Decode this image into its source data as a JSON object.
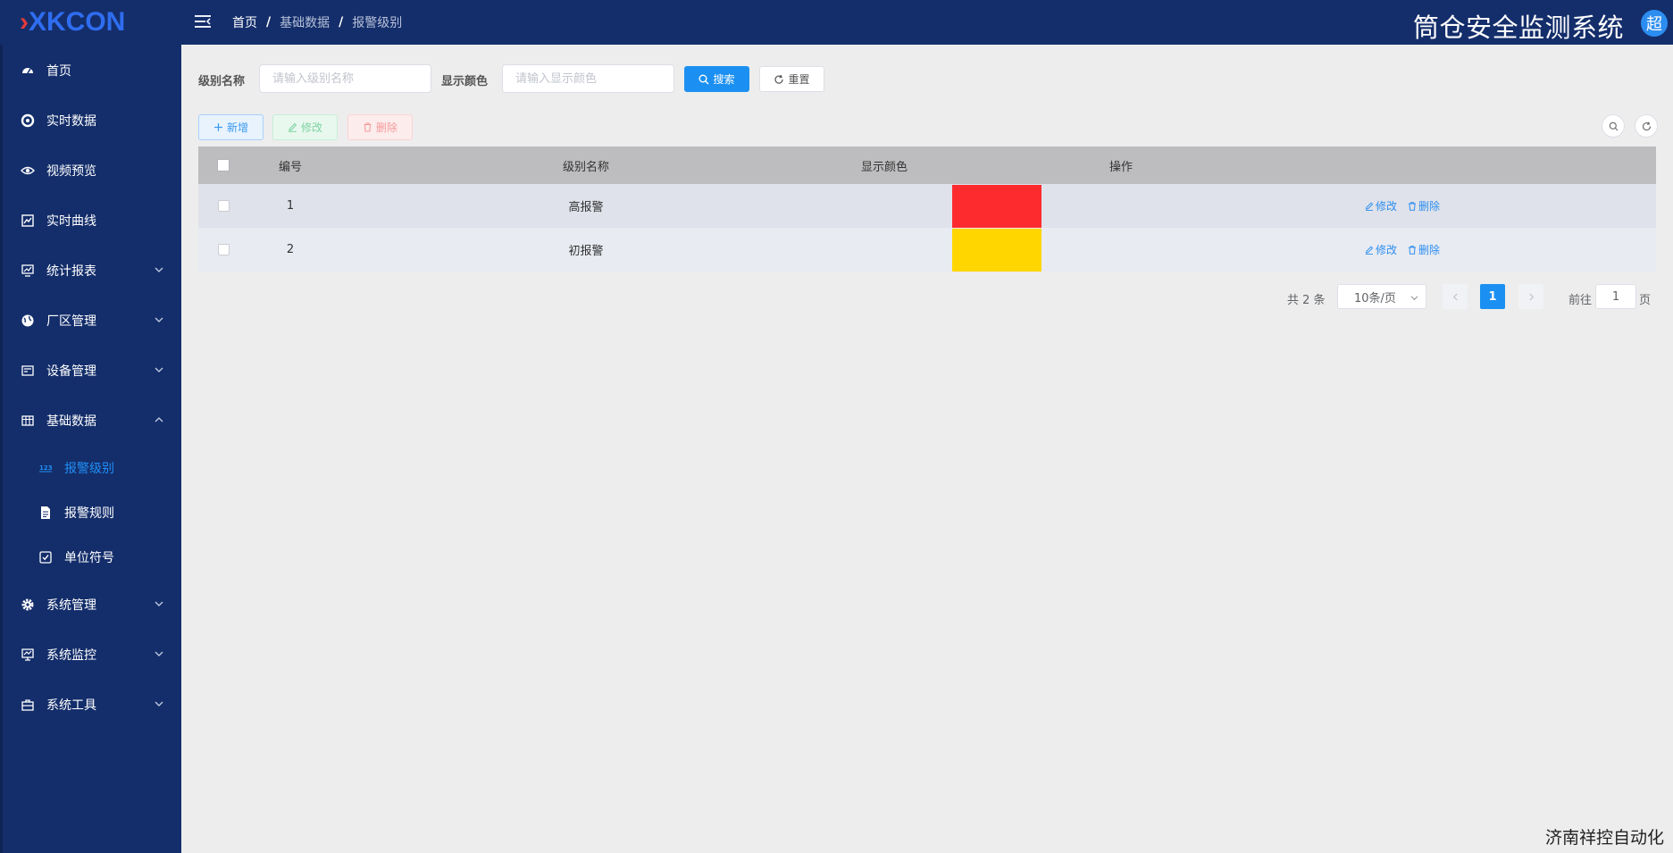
{
  "app": {
    "logo_mark": "›",
    "logo_text": "XKCON",
    "system_title": "筒仓安全监测系统",
    "avatar_text": "超",
    "footer": "济南祥控自动化"
  },
  "breadcrumb": [
    "首页",
    "基础数据",
    "报警级别"
  ],
  "sidebar": {
    "items": [
      {
        "label": "首页",
        "icon": "dashboard-icon"
      },
      {
        "label": "实时数据",
        "icon": "realtime-icon"
      },
      {
        "label": "视频预览",
        "icon": "eye-icon"
      },
      {
        "label": "实时曲线",
        "icon": "curve-icon"
      },
      {
        "label": "统计报表",
        "icon": "report-icon",
        "expandable": true
      },
      {
        "label": "厂区管理",
        "icon": "globe-icon",
        "expandable": true
      },
      {
        "label": "设备管理",
        "icon": "device-icon",
        "expandable": true
      },
      {
        "label": "基础数据",
        "icon": "table-icon",
        "expandable": true,
        "expanded": true
      },
      {
        "label": "报警级别",
        "icon": "number-icon",
        "sub": true,
        "active": true
      },
      {
        "label": "报警规则",
        "icon": "document-icon",
        "sub": true
      },
      {
        "label": "单位符号",
        "icon": "checkbox-icon",
        "sub": true
      },
      {
        "label": "系统管理",
        "icon": "gear-icon",
        "expandable": true
      },
      {
        "label": "系统监控",
        "icon": "monitor-icon",
        "expandable": true
      },
      {
        "label": "系统工具",
        "icon": "toolbox-icon",
        "expandable": true
      }
    ]
  },
  "filter": {
    "level_name_label": "级别名称",
    "level_name_placeholder": "请输入级别名称",
    "color_label": "显示颜色",
    "color_placeholder": "请输入显示颜色",
    "search_label": "搜索",
    "reset_label": "重置"
  },
  "toolbar": {
    "add_label": "新增",
    "edit_label": "修改",
    "delete_label": "删除"
  },
  "table": {
    "columns": [
      "编号",
      "级别名称",
      "显示颜色",
      "操作"
    ],
    "rows": [
      {
        "id": "1",
        "name": "高报警",
        "color": "#fe2b2e",
        "edit": "修改",
        "delete": "删除"
      },
      {
        "id": "2",
        "name": "初报警",
        "color": "#ffd600",
        "edit": "修改",
        "delete": "删除"
      }
    ]
  },
  "pagination": {
    "total": "共 2 条",
    "page_size": "10条/页",
    "current_page": "1",
    "goto_prefix": "前往",
    "goto_value": "1",
    "goto_suffix": "页"
  },
  "colors": {
    "sidebar_bg": "#142e6b",
    "primary": "#1b90f2"
  }
}
